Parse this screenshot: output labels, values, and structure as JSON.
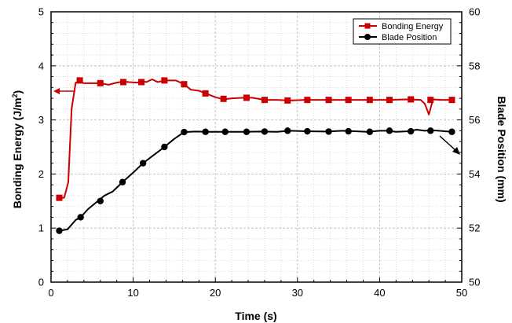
{
  "chart_data": {
    "type": "line",
    "xlabel": "Time (s)",
    "ylabel_left": "Bonding Energy (J/m",
    "ylabel_left_sup": "2",
    "ylabel_left_close": ")",
    "ylabel_right": "Blade Position (mm)",
    "xlim": [
      0,
      50
    ],
    "ylim_left": [
      0,
      5
    ],
    "ylim_right": [
      50,
      60
    ],
    "x_ticks": [
      "0",
      "10",
      "20",
      "30",
      "40",
      "50"
    ],
    "y_left_ticks": [
      "0",
      "1",
      "2",
      "3",
      "4",
      "5"
    ],
    "y_right_ticks": [
      "50",
      "52",
      "54",
      "56",
      "58",
      "60"
    ],
    "grid": true,
    "legend_position": "top-right",
    "series": [
      {
        "name": "Bonding Energy",
        "axis": "left",
        "color": "#cc0000",
        "marker": "square",
        "x": [
          1.0,
          1.6,
          2.1,
          2.5,
          3.0,
          3.5,
          4.0,
          5.0,
          6.0,
          7.0,
          8.0,
          8.8,
          9.5,
          10.5,
          11.0,
          11.6,
          12.3,
          13.0,
          13.8,
          14.5,
          15.2,
          16.2,
          17.0,
          18.0,
          19.0,
          20.0,
          21.0,
          22.0,
          23.5,
          24.5,
          26.0,
          27.5,
          29.0,
          31.0,
          33.5,
          36.0,
          38.5,
          41.0,
          43.5,
          45.0,
          45.5,
          46.0,
          46.5,
          47.5,
          49.0
        ],
        "y": [
          1.56,
          1.56,
          1.85,
          3.2,
          3.69,
          3.71,
          3.68,
          3.68,
          3.68,
          3.65,
          3.69,
          3.71,
          3.7,
          3.69,
          3.72,
          3.7,
          3.75,
          3.7,
          3.73,
          3.73,
          3.73,
          3.66,
          3.56,
          3.54,
          3.48,
          3.42,
          3.38,
          3.4,
          3.41,
          3.41,
          3.37,
          3.37,
          3.36,
          3.37,
          3.37,
          3.37,
          3.37,
          3.37,
          3.38,
          3.37,
          3.3,
          3.1,
          3.38,
          3.37,
          3.37
        ],
        "marker_x": [
          1.0,
          3.5,
          6.0,
          8.8,
          11.0,
          13.8,
          16.2,
          18.8,
          21.0,
          23.8,
          26.0,
          28.8,
          31.2,
          33.8,
          36.2,
          38.8,
          41.2,
          43.8,
          46.2,
          48.8
        ],
        "marker_y": [
          1.56,
          3.73,
          3.68,
          3.7,
          3.7,
          3.73,
          3.66,
          3.49,
          3.39,
          3.41,
          3.37,
          3.36,
          3.37,
          3.37,
          3.37,
          3.37,
          3.37,
          3.38,
          3.37,
          3.37
        ]
      },
      {
        "name": "Blade Position",
        "axis": "right",
        "color": "#000000",
        "marker": "circle",
        "x": [
          1.0,
          2.0,
          3.0,
          3.6,
          4.5,
          5.5,
          6.5,
          7.5,
          8.7,
          10.0,
          11.2,
          12.5,
          13.8,
          15.0,
          16.2,
          17.5,
          19.0,
          21.0,
          23.5,
          25.5,
          27.5,
          29.0,
          31.0,
          33.5,
          35.5,
          37.0,
          38.5,
          40.0,
          41.0,
          42.0,
          43.5,
          44.5,
          45.5,
          46.2,
          47.2,
          48.8
        ],
        "y": [
          51.9,
          51.95,
          52.3,
          52.4,
          52.7,
          52.95,
          53.2,
          53.35,
          53.7,
          54.05,
          54.4,
          54.7,
          55.0,
          55.3,
          55.55,
          55.57,
          55.56,
          55.56,
          55.56,
          55.57,
          55.56,
          55.6,
          55.58,
          55.57,
          55.6,
          55.58,
          55.56,
          55.6,
          55.6,
          55.56,
          55.58,
          55.64,
          55.6,
          55.62,
          55.6,
          55.56
        ],
        "marker_x": [
          1.0,
          3.6,
          6.0,
          8.7,
          11.2,
          13.8,
          16.2,
          18.8,
          21.2,
          23.8,
          26.0,
          28.8,
          31.2,
          33.8,
          36.2,
          38.8,
          41.2,
          43.8,
          46.2,
          48.8
        ],
        "marker_y": [
          51.9,
          52.4,
          53.0,
          53.7,
          54.4,
          55.0,
          55.55,
          55.56,
          55.56,
          55.56,
          55.57,
          55.6,
          55.58,
          55.57,
          55.58,
          55.56,
          55.6,
          55.58,
          55.6,
          55.56
        ]
      }
    ]
  }
}
